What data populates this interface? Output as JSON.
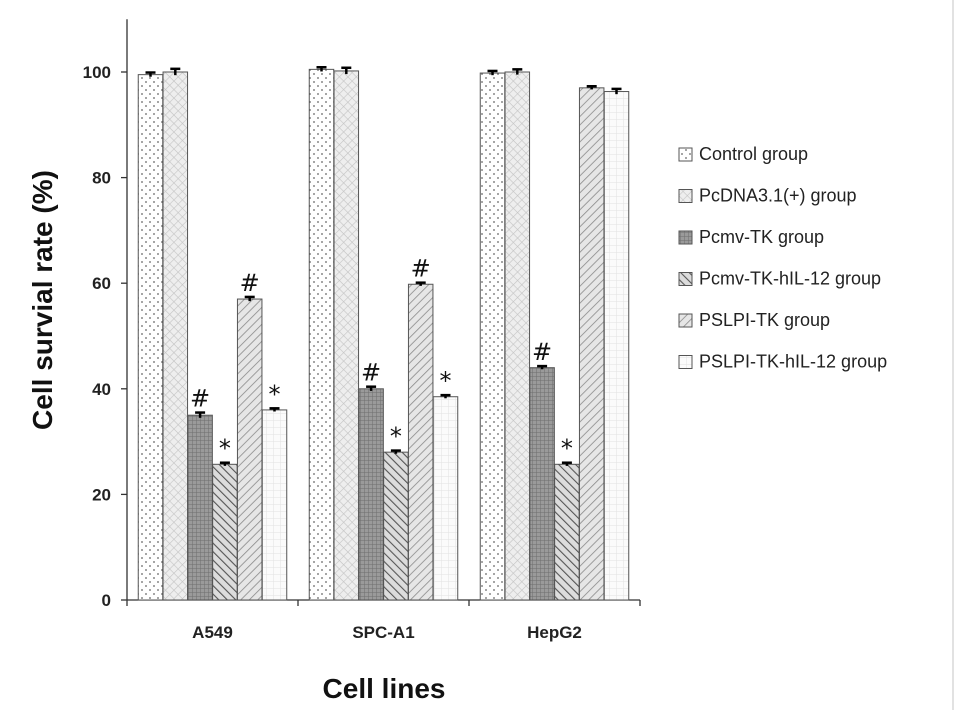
{
  "chart_data": {
    "type": "bar",
    "xlabel": "Cell lines",
    "ylabel": "Cell survial rate (%)",
    "ylim": [
      0,
      110
    ],
    "yticks": [
      0,
      20,
      40,
      60,
      80,
      100
    ],
    "categories": [
      "A549",
      "SPC-A1",
      "HepG2"
    ],
    "legend_position": "right",
    "series": [
      {
        "name": "Control group",
        "pattern": "dots",
        "values": [
          99.5,
          100.5,
          99.8
        ],
        "errors": [
          0.4,
          0.4,
          0.4
        ],
        "annotations": [
          "",
          "",
          ""
        ]
      },
      {
        "name": "PcDNA3.1(+) group",
        "pattern": "crosshatch",
        "values": [
          100.0,
          100.2,
          100.0
        ],
        "errors": [
          0.6,
          0.6,
          0.5
        ],
        "annotations": [
          "",
          "",
          ""
        ]
      },
      {
        "name": "Pcmv-TK group",
        "pattern": "dense-grid",
        "values": [
          35.0,
          40.0,
          44.0
        ],
        "errors": [
          0.5,
          0.4,
          0.3
        ],
        "annotations": [
          "#",
          "#",
          "#"
        ]
      },
      {
        "name": "Pcmv-TK-hIL-12 group",
        "pattern": "diagonal-back",
        "values": [
          25.7,
          28.0,
          25.7
        ],
        "errors": [
          0.3,
          0.3,
          0.3
        ],
        "annotations": [
          "*",
          "*",
          "*"
        ]
      },
      {
        "name": "PSLPI-TK group",
        "pattern": "diagonal-forward",
        "values": [
          57.0,
          59.8,
          97.0
        ],
        "errors": [
          0.4,
          0.3,
          0.3
        ],
        "annotations": [
          "#",
          "#",
          ""
        ]
      },
      {
        "name": "PSLPI-TK-hIL-12 group",
        "pattern": "light-grid",
        "values": [
          36.0,
          38.5,
          96.3
        ],
        "errors": [
          0.3,
          0.3,
          0.5
        ],
        "annotations": [
          "*",
          "*",
          ""
        ]
      }
    ]
  }
}
